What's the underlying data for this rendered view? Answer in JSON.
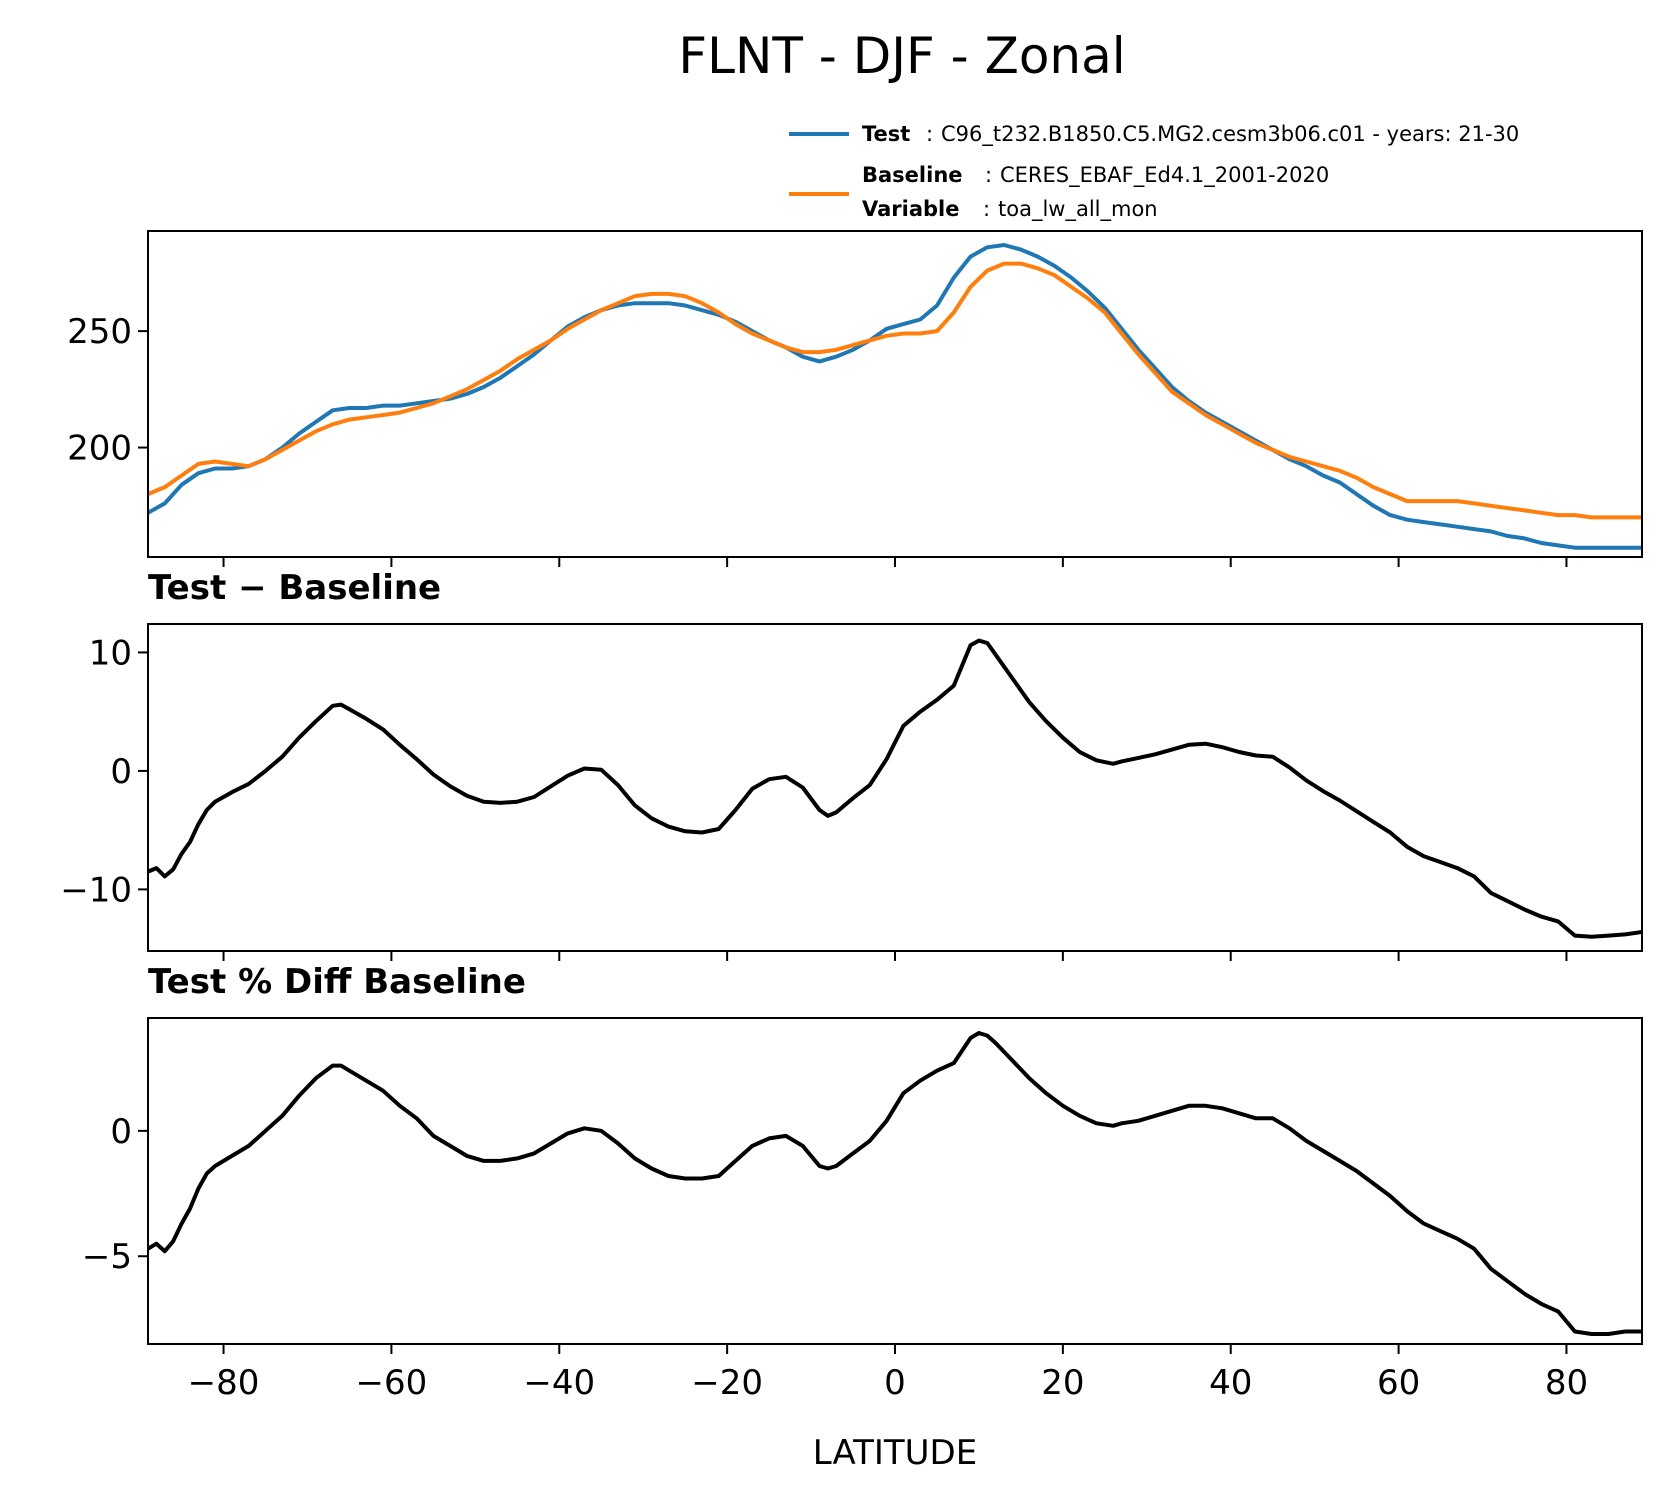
{
  "figure": {
    "title": "FLNT - DJF - Zonal",
    "xlabel": "LATITUDE"
  },
  "legend": {
    "test_label": "Test",
    "test_text": "C96_t232.B1850.C5.MG2.cesm3b06.c01 - years: 21-30",
    "baseline_label": "Baseline",
    "baseline_text": "CERES_EBAF_Ed4.1_2001-2020",
    "variable_label": "Variable",
    "variable_text": "toa_lw_all_mon",
    "test_color": "#1f77b4",
    "baseline_color": "#ff7f0e"
  },
  "chart_data": [
    {
      "type": "line",
      "title": "",
      "xlim": [
        -89,
        89
      ],
      "ylim": [
        153,
        293
      ],
      "yticks": [
        200,
        250
      ],
      "ytick_labels": [
        "200",
        "250"
      ],
      "x": [
        -89,
        -87,
        -85,
        -83,
        -81,
        -79,
        -77,
        -75,
        -73,
        -71,
        -69,
        -67,
        -65,
        -63,
        -61,
        -59,
        -57,
        -55,
        -53,
        -51,
        -49,
        -47,
        -45,
        -43,
        -41,
        -39,
        -37,
        -35,
        -33,
        -31,
        -29,
        -27,
        -25,
        -23,
        -21,
        -19,
        -17,
        -15,
        -13,
        -11,
        -9,
        -7,
        -5,
        -3,
        -1,
        1,
        3,
        5,
        7,
        9,
        11,
        13,
        15,
        17,
        19,
        21,
        23,
        25,
        27,
        29,
        31,
        33,
        35,
        37,
        39,
        41,
        43,
        45,
        47,
        49,
        51,
        53,
        55,
        57,
        59,
        61,
        63,
        65,
        67,
        69,
        71,
        73,
        75,
        77,
        79,
        81,
        83,
        85,
        87,
        89
      ],
      "series": [
        {
          "name": "Test",
          "color": "#1f77b4",
          "values": [
            172,
            176,
            184,
            189,
            191,
            191,
            192,
            195,
            200,
            206,
            211,
            216,
            217,
            217,
            218,
            218,
            219,
            220,
            221,
            223,
            226,
            230,
            235,
            240,
            246,
            252,
            256,
            259,
            261,
            262,
            262,
            262,
            261,
            259,
            257,
            254,
            250,
            246,
            243,
            239,
            237,
            239,
            242,
            246,
            251,
            253,
            255,
            261,
            273,
            282,
            286,
            287,
            285,
            282,
            278,
            273,
            267,
            260,
            251,
            242,
            234,
            226,
            220,
            215,
            211,
            207,
            203,
            199,
            195,
            192,
            188,
            185,
            180,
            175,
            171,
            169,
            168,
            167,
            166,
            165,
            164,
            162,
            161,
            159,
            158,
            157,
            157,
            157,
            157,
            157
          ]
        },
        {
          "name": "Baseline",
          "color": "#ff7f0e",
          "values": [
            180,
            183,
            188,
            193,
            194,
            193,
            192,
            195,
            199,
            203,
            207,
            210,
            212,
            213,
            214,
            215,
            217,
            219,
            222,
            225,
            229,
            233,
            238,
            242,
            246,
            251,
            255,
            259,
            262,
            265,
            266,
            266,
            265,
            262,
            258,
            253,
            249,
            246,
            243,
            241,
            241,
            242,
            244,
            246,
            248,
            249,
            249,
            250,
            258,
            269,
            276,
            279,
            279,
            277,
            274,
            269,
            264,
            258,
            249,
            240,
            232,
            224,
            219,
            214,
            210,
            206,
            202,
            199,
            196,
            194,
            192,
            190,
            187,
            183,
            180,
            177,
            177,
            177,
            177,
            176,
            175,
            174,
            173,
            172,
            171,
            171,
            170,
            170,
            170,
            170
          ]
        }
      ]
    },
    {
      "type": "line",
      "title": "Test − Baseline",
      "xlim": [
        -89,
        89
      ],
      "ylim": [
        -15.2,
        12.4
      ],
      "yticks": [
        -10,
        0,
        10
      ],
      "ytick_labels": [
        "−10",
        "0",
        "10"
      ],
      "x": [
        -89,
        -88,
        -87,
        -86,
        -85,
        -84,
        -83,
        -82,
        -81,
        -79,
        -77,
        -75,
        -73,
        -71,
        -69,
        -67,
        -66,
        -65,
        -63,
        -61,
        -59,
        -57,
        -55,
        -53,
        -51,
        -49,
        -47,
        -45,
        -43,
        -41,
        -39,
        -37,
        -35,
        -33,
        -31,
        -29,
        -27,
        -25,
        -23,
        -21,
        -19,
        -17,
        -15,
        -13,
        -11,
        -9,
        -8,
        -7,
        -5,
        -3,
        -1,
        1,
        3,
        5,
        7,
        9,
        10,
        11,
        12,
        14,
        16,
        18,
        20,
        22,
        24,
        26,
        27,
        29,
        31,
        33,
        35,
        37,
        39,
        41,
        43,
        45,
        47,
        49,
        51,
        53,
        55,
        57,
        59,
        61,
        63,
        65,
        67,
        69,
        71,
        73,
        75,
        77,
        79,
        81,
        83,
        85,
        87,
        89
      ],
      "series": [
        {
          "name": "Test − Baseline",
          "color": "#000000",
          "values": [
            -8.5,
            -8.2,
            -8.9,
            -8.3,
            -7.0,
            -6.0,
            -4.5,
            -3.3,
            -2.6,
            -1.8,
            -1.1,
            0.0,
            1.2,
            2.8,
            4.2,
            5.5,
            5.6,
            5.2,
            4.4,
            3.5,
            2.2,
            1.0,
            -0.3,
            -1.3,
            -2.1,
            -2.6,
            -2.7,
            -2.6,
            -2.2,
            -1.3,
            -0.4,
            0.2,
            0.1,
            -1.2,
            -2.9,
            -4.0,
            -4.7,
            -5.1,
            -5.2,
            -4.9,
            -3.3,
            -1.5,
            -0.7,
            -0.5,
            -1.4,
            -3.3,
            -3.8,
            -3.5,
            -2.3,
            -1.2,
            1.0,
            3.8,
            5.0,
            6.0,
            7.2,
            10.6,
            11.0,
            10.8,
            9.8,
            7.8,
            5.8,
            4.2,
            2.8,
            1.6,
            0.9,
            0.6,
            0.8,
            1.1,
            1.4,
            1.8,
            2.2,
            2.3,
            2.0,
            1.6,
            1.3,
            1.2,
            0.3,
            -0.8,
            -1.7,
            -2.5,
            -3.4,
            -4.3,
            -5.2,
            -6.4,
            -7.2,
            -7.7,
            -8.2,
            -8.9,
            -10.3,
            -11.0,
            -11.7,
            -12.3,
            -12.7,
            -13.9,
            -14.0,
            -13.9,
            -13.8,
            -13.6
          ]
        }
      ]
    },
    {
      "type": "line",
      "title": "Test % Diff Baseline",
      "xlim": [
        -89,
        89
      ],
      "ylim": [
        -8.5,
        4.5
      ],
      "yticks": [
        -5,
        0
      ],
      "ytick_labels": [
        "−5",
        "0"
      ],
      "x": [
        -89,
        -88,
        -87,
        -86,
        -85,
        -84,
        -83,
        -82,
        -81,
        -79,
        -77,
        -75,
        -73,
        -71,
        -69,
        -67,
        -66,
        -65,
        -63,
        -61,
        -59,
        -57,
        -55,
        -53,
        -51,
        -49,
        -47,
        -45,
        -43,
        -41,
        -39,
        -37,
        -35,
        -33,
        -31,
        -29,
        -27,
        -25,
        -23,
        -21,
        -19,
        -17,
        -15,
        -13,
        -11,
        -9,
        -8,
        -7,
        -5,
        -3,
        -1,
        1,
        3,
        5,
        7,
        9,
        10,
        11,
        12,
        14,
        16,
        18,
        20,
        22,
        24,
        26,
        27,
        29,
        31,
        33,
        35,
        37,
        39,
        41,
        43,
        45,
        47,
        49,
        51,
        53,
        55,
        57,
        59,
        61,
        63,
        65,
        67,
        69,
        71,
        73,
        75,
        77,
        79,
        81,
        83,
        85,
        87,
        89
      ],
      "series": [
        {
          "name": "Test % Diff Baseline",
          "color": "#000000",
          "values": [
            -4.7,
            -4.5,
            -4.8,
            -4.4,
            -3.7,
            -3.1,
            -2.3,
            -1.7,
            -1.4,
            -1.0,
            -0.6,
            0.0,
            0.6,
            1.4,
            2.1,
            2.6,
            2.6,
            2.4,
            2.0,
            1.6,
            1.0,
            0.5,
            -0.2,
            -0.6,
            -1.0,
            -1.2,
            -1.2,
            -1.1,
            -0.9,
            -0.5,
            -0.1,
            0.1,
            0.0,
            -0.5,
            -1.1,
            -1.5,
            -1.8,
            -1.9,
            -1.9,
            -1.8,
            -1.2,
            -0.6,
            -0.3,
            -0.2,
            -0.6,
            -1.4,
            -1.5,
            -1.4,
            -0.9,
            -0.4,
            0.4,
            1.5,
            2.0,
            2.4,
            2.7,
            3.7,
            3.9,
            3.8,
            3.5,
            2.8,
            2.1,
            1.5,
            1.0,
            0.6,
            0.3,
            0.2,
            0.3,
            0.4,
            0.6,
            0.8,
            1.0,
            1.0,
            0.9,
            0.7,
            0.5,
            0.5,
            0.1,
            -0.4,
            -0.8,
            -1.2,
            -1.6,
            -2.1,
            -2.6,
            -3.2,
            -3.7,
            -4.0,
            -4.3,
            -4.7,
            -5.5,
            -6.0,
            -6.5,
            -6.9,
            -7.2,
            -8.0,
            -8.1,
            -8.1,
            -8.0,
            -8.0
          ]
        }
      ]
    }
  ],
  "shared_x_axis": {
    "ticks": [
      -80,
      -60,
      -40,
      -20,
      0,
      20,
      40,
      60,
      80
    ],
    "tick_labels": [
      "−80",
      "−60",
      "−40",
      "−20",
      "0",
      "20",
      "40",
      "60",
      "80"
    ]
  }
}
